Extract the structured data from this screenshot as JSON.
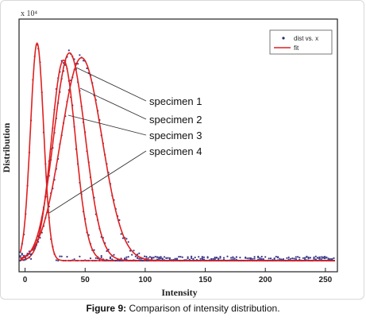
{
  "chart_data": {
    "type": "line",
    "title": "",
    "xlabel": "Intensity",
    "ylabel": "Distribution",
    "y_multiplier": "x 10⁴",
    "xlim": [
      -5,
      260
    ],
    "ylim": [
      0,
      1
    ],
    "xticks": [
      0,
      50,
      100,
      150,
      200,
      250
    ],
    "grid": false,
    "legend": {
      "placement": "top-right",
      "entries": [
        {
          "label": "dist vs. x",
          "marker": "dot",
          "color": "#2a2a6a"
        },
        {
          "label": "fit",
          "marker": "line",
          "color": "#e02020"
        }
      ]
    },
    "annotations": [
      "specimen 1",
      "specimen 2",
      "specimen 3",
      "specimen 4"
    ],
    "series": [
      {
        "mean": 10,
        "sd": 5.5,
        "peak": 0.9
      },
      {
        "mean": 32,
        "sd": 10,
        "peak": 0.83
      },
      {
        "mean": 37,
        "sd": 13,
        "peak": 0.86
      },
      {
        "mean": 47,
        "sd": 17,
        "peak": 0.84
      }
    ],
    "colors": {
      "fit": "#e02020",
      "points": "#3a3a8a"
    }
  },
  "caption": {
    "label": "Figure 9:",
    "text": " Comparison of intensity distribution."
  }
}
